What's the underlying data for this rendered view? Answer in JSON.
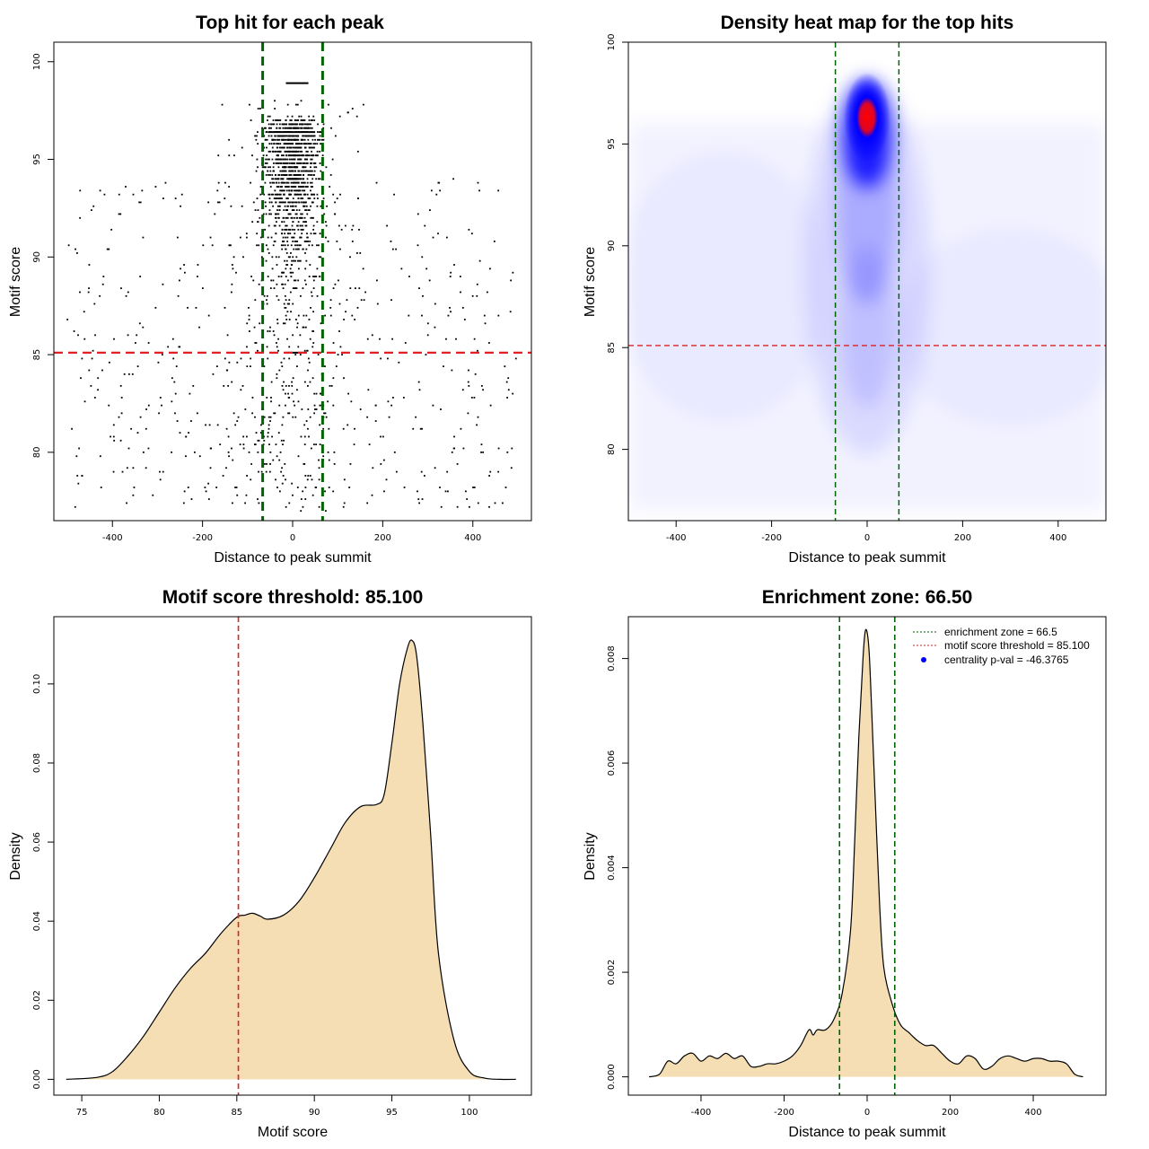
{
  "colors": {
    "green": "#006400",
    "red": "#dd2222",
    "fill": "#f5deb3",
    "heat_low": "#ffffff",
    "heat_mid": "#0000ff",
    "heat_high": "#ff0000",
    "point": "#000000"
  },
  "chart_data": [
    {
      "id": "scatter",
      "type": "scatter",
      "title": "Top hit for each peak",
      "xlabel": "Distance to peak summit",
      "ylabel": "Motif score",
      "xlim": [
        -530,
        530
      ],
      "ylim": [
        76.5,
        101
      ],
      "xticks": [
        -400,
        -200,
        0,
        200,
        400
      ],
      "yticks": [
        80,
        85,
        90,
        95,
        100
      ],
      "vlines": [
        -66.5,
        66.5
      ],
      "hline": 85.1,
      "points_note": "approx. 2200 top hits; dense between -100 and 100 near scores 86-99, sparse elsewhere"
    },
    {
      "id": "heatmap",
      "type": "heatmap",
      "title": "Density heat map for the top hits",
      "xlabel": "Distance to peak summit",
      "ylabel": "Motif score",
      "xlim": [
        -500,
        500
      ],
      "ylim": [
        76.5,
        100
      ],
      "xticks": [
        -400,
        -200,
        0,
        200,
        400
      ],
      "yticks": [
        80,
        85,
        90,
        95,
        100
      ],
      "vlines": [
        -66.5,
        66.5
      ],
      "hline": 85.1,
      "hotspot": {
        "x": 0,
        "y": 96.3
      }
    },
    {
      "id": "score_density",
      "type": "area",
      "title": "Motif score threshold: 85.100",
      "xlabel": "Motif score",
      "ylabel": "Density",
      "xlim": [
        73.2,
        104
      ],
      "ylim": [
        -0.004,
        0.117
      ],
      "xticks": [
        75,
        80,
        85,
        90,
        95,
        100
      ],
      "yticks": [
        0.0,
        0.02,
        0.04,
        0.06,
        0.08,
        0.1
      ],
      "ytick_labels": [
        "0.00",
        "0.02",
        "0.04",
        "0.06",
        "0.08",
        "0.10"
      ],
      "vline": 85.1,
      "x": [
        74,
        76,
        77,
        78,
        79,
        80,
        81,
        82,
        83,
        84,
        85,
        85.5,
        86,
        86.5,
        87,
        88,
        89,
        90,
        91,
        92,
        93,
        94,
        94.5,
        95,
        95.5,
        96,
        96.3,
        96.6,
        97,
        97.5,
        98,
        99,
        100,
        101,
        102,
        103
      ],
      "y": [
        0,
        0.0005,
        0.002,
        0.006,
        0.011,
        0.017,
        0.023,
        0.028,
        0.032,
        0.037,
        0.041,
        0.0415,
        0.042,
        0.0413,
        0.0405,
        0.0415,
        0.045,
        0.051,
        0.058,
        0.065,
        0.069,
        0.0695,
        0.072,
        0.085,
        0.1,
        0.109,
        0.111,
        0.107,
        0.09,
        0.062,
        0.032,
        0.01,
        0.002,
        0.0003,
        0,
        0
      ]
    },
    {
      "id": "distance_density",
      "type": "area",
      "title": "Enrichment zone: 66.50",
      "xlabel": "Distance to peak summit",
      "ylabel": "Density",
      "xlim": [
        -575,
        575
      ],
      "ylim": [
        -0.00035,
        0.0088
      ],
      "xticks": [
        -400,
        -200,
        0,
        200,
        400
      ],
      "yticks": [
        0.0,
        0.002,
        0.004,
        0.006,
        0.008
      ],
      "ytick_labels": [
        "0.000",
        "0.002",
        "0.004",
        "0.006",
        "0.008"
      ],
      "vlines": [
        -66.5,
        66.5
      ],
      "legend": {
        "position": "top-right",
        "entries": [
          "enrichment zone = 66.5",
          "motif score threshold = 85.100",
          "centrality p-val = -46.3765"
        ]
      },
      "x": [
        -525,
        -500,
        -480,
        -460,
        -440,
        -420,
        -400,
        -380,
        -360,
        -340,
        -320,
        -300,
        -280,
        -260,
        -240,
        -220,
        -200,
        -180,
        -160,
        -140,
        -130,
        -120,
        -100,
        -80,
        -60,
        -40,
        -30,
        -20,
        -10,
        -5,
        0,
        5,
        10,
        20,
        30,
        40,
        60,
        80,
        100,
        120,
        140,
        160,
        180,
        200,
        220,
        240,
        260,
        280,
        300,
        320,
        340,
        360,
        380,
        400,
        420,
        440,
        460,
        480,
        500,
        520
      ],
      "y": [
        0,
        5e-05,
        0.0003,
        0.00025,
        0.0004,
        0.00045,
        0.0003,
        0.0004,
        0.00035,
        0.00045,
        0.00035,
        0.0004,
        0.0002,
        0.0002,
        0.00025,
        0.00025,
        0.0003,
        0.0004,
        0.0006,
        0.0009,
        0.0008,
        0.0009,
        0.0009,
        0.0011,
        0.0016,
        0.0028,
        0.0045,
        0.0065,
        0.008,
        0.0085,
        0.0085,
        0.0081,
        0.0072,
        0.0052,
        0.0033,
        0.0021,
        0.0014,
        0.001,
        0.00085,
        0.0007,
        0.0006,
        0.0006,
        0.00045,
        0.0003,
        0.00025,
        0.0004,
        0.00035,
        0.00015,
        0.0002,
        0.00035,
        0.0004,
        0.00035,
        0.0003,
        0.00035,
        0.00035,
        0.0003,
        0.0003,
        0.00025,
        5e-05,
        0
      ]
    }
  ]
}
